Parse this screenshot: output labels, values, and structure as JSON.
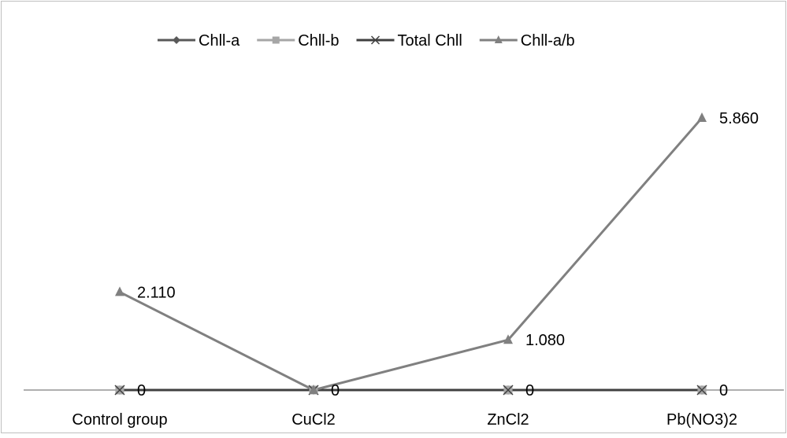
{
  "chart_data": {
    "type": "line",
    "title": "",
    "xlabel": "",
    "ylabel": "",
    "categories": [
      "Control group",
      "CuCl2",
      "ZnCl2",
      "Pb(NO3)2"
    ],
    "ylim": [
      0,
      6.5
    ],
    "grid": false,
    "legend_position": "top",
    "series": [
      {
        "name": "Chll-a",
        "values": [
          0,
          0,
          0,
          0
        ],
        "marker": "diamond",
        "color": "#595959",
        "labels": [
          "",
          "",
          "",
          ""
        ]
      },
      {
        "name": "Chll-b",
        "values": [
          0,
          0,
          0,
          0
        ],
        "marker": "square",
        "color": "#a6a6a6",
        "labels": [
          "",
          "",
          "",
          ""
        ]
      },
      {
        "name": "Total Chll",
        "values": [
          0,
          0,
          0,
          0
        ],
        "marker": "cross",
        "color": "#404040",
        "labels": [
          "0",
          "0",
          "0",
          "0"
        ]
      },
      {
        "name": "Chll-a/b",
        "values": [
          2.11,
          0,
          1.08,
          5.86
        ],
        "marker": "triangle",
        "color": "#808080",
        "labels": [
          "2.110",
          "0",
          "1.080",
          "5.860"
        ]
      }
    ]
  }
}
